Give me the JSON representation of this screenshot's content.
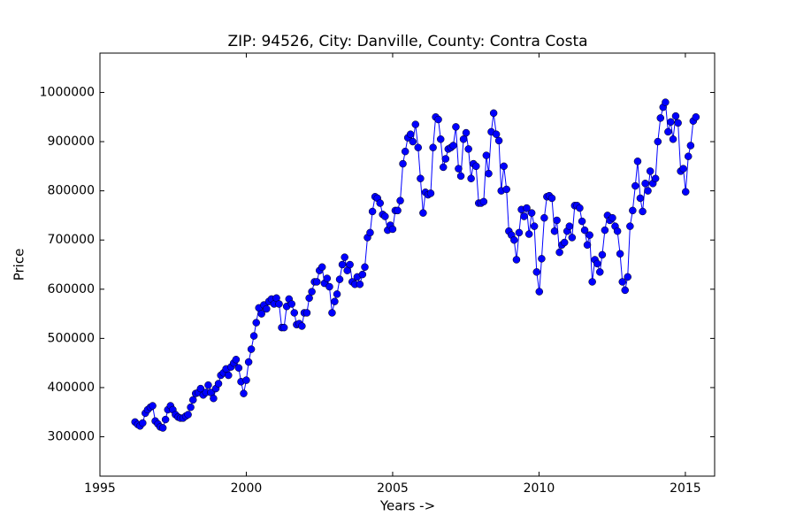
{
  "chart_data": {
    "type": "line",
    "title": "ZIP: 94526, City: Danville, County: Contra Costa",
    "x_label": "Years ->",
    "y_label": "Price",
    "xlim": [
      1995,
      2016
    ],
    "ylim": [
      220000,
      1080000
    ],
    "xticks": [
      1995,
      2000,
      2005,
      2010,
      2015
    ],
    "yticks": [
      300000,
      400000,
      500000,
      600000,
      700000,
      800000,
      900000,
      1000000
    ],
    "series": [
      {
        "color": "#0000ff",
        "x": [
          1996.2,
          1996.29,
          1996.37,
          1996.46,
          1996.55,
          1996.63,
          1996.72,
          1996.8,
          1996.89,
          1996.98,
          1997.06,
          1997.15,
          1997.24,
          1997.32,
          1997.41,
          1997.49,
          1997.58,
          1997.67,
          1997.75,
          1997.84,
          1997.93,
          1998.01,
          1998.1,
          1998.18,
          1998.27,
          1998.36,
          1998.44,
          1998.53,
          1998.62,
          1998.7,
          1998.79,
          1998.88,
          1998.96,
          1999.05,
          1999.13,
          1999.22,
          1999.31,
          1999.39,
          1999.48,
          1999.57,
          1999.65,
          1999.74,
          1999.82,
          1999.91,
          2000.0,
          2000.08,
          2000.17,
          2000.26,
          2000.34,
          2000.43,
          2000.52,
          2000.6,
          2000.69,
          2000.77,
          2000.86,
          2000.95,
          2001.03,
          2001.12,
          2001.21,
          2001.29,
          2001.38,
          2001.46,
          2001.55,
          2001.64,
          2001.72,
          2001.81,
          2001.9,
          2001.98,
          2002.07,
          2002.15,
          2002.24,
          2002.33,
          2002.41,
          2002.5,
          2002.59,
          2002.67,
          2002.76,
          2002.84,
          2002.93,
          2003.02,
          2003.1,
          2003.19,
          2003.28,
          2003.36,
          2003.45,
          2003.54,
          2003.62,
          2003.71,
          2003.79,
          2003.88,
          2003.97,
          2004.05,
          2004.14,
          2004.23,
          2004.31,
          2004.4,
          2004.48,
          2004.57,
          2004.66,
          2004.74,
          2004.83,
          2004.92,
          2005.0,
          2005.09,
          2005.17,
          2005.26,
          2005.35,
          2005.43,
          2005.52,
          2005.61,
          2005.69,
          2005.78,
          2005.87,
          2005.95,
          2006.04,
          2006.12,
          2006.21,
          2006.3,
          2006.38,
          2006.47,
          2006.56,
          2006.64,
          2006.73,
          2006.81,
          2006.9,
          2006.99,
          2007.07,
          2007.16,
          2007.25,
          2007.33,
          2007.42,
          2007.51,
          2007.59,
          2007.68,
          2007.76,
          2007.85,
          2007.94,
          2008.02,
          2008.11,
          2008.2,
          2008.28,
          2008.37,
          2008.45,
          2008.54,
          2008.63,
          2008.71,
          2008.8,
          2008.89,
          2008.97,
          2009.06,
          2009.15,
          2009.23,
          2009.32,
          2009.4,
          2009.49,
          2009.58,
          2009.66,
          2009.75,
          2009.84,
          2009.92,
          2010.01,
          2010.09,
          2010.18,
          2010.27,
          2010.35,
          2010.44,
          2010.53,
          2010.61,
          2010.7,
          2010.78,
          2010.87,
          2010.96,
          2011.04,
          2011.13,
          2011.22,
          2011.3,
          2011.39,
          2011.47,
          2011.56,
          2011.65,
          2011.73,
          2011.82,
          2011.91,
          2011.99,
          2012.08,
          2012.16,
          2012.25,
          2012.34,
          2012.42,
          2012.51,
          2012.6,
          2012.68,
          2012.77,
          2012.85,
          2012.94,
          2013.03,
          2013.11,
          2013.2,
          2013.29,
          2013.37,
          2013.46,
          2013.54,
          2013.63,
          2013.72,
          2013.8,
          2013.89,
          2013.98,
          2014.06,
          2014.15,
          2014.24,
          2014.32,
          2014.41,
          2014.5,
          2014.58,
          2014.67,
          2014.75,
          2014.84,
          2014.93,
          2015.01,
          2015.1,
          2015.18,
          2015.27,
          2015.36
        ],
        "values": [
          330000,
          325000,
          322000,
          328000,
          348000,
          355000,
          360000,
          363000,
          332000,
          326000,
          320000,
          318000,
          335000,
          355000,
          363000,
          355000,
          345000,
          340000,
          338000,
          338000,
          342000,
          345000,
          360000,
          375000,
          388000,
          390000,
          398000,
          385000,
          390000,
          405000,
          390000,
          378000,
          398000,
          408000,
          425000,
          430000,
          438000,
          425000,
          442000,
          450000,
          457000,
          440000,
          412000,
          388000,
          415000,
          452000,
          478000,
          505000,
          532000,
          562000,
          550000,
          568000,
          560000,
          575000,
          580000,
          570000,
          582000,
          570000,
          522000,
          522000,
          565000,
          580000,
          570000,
          552000,
          528000,
          530000,
          525000,
          552000,
          552000,
          582000,
          595000,
          615000,
          615000,
          638000,
          645000,
          612000,
          622000,
          605000,
          552000,
          575000,
          590000,
          620000,
          650000,
          665000,
          638000,
          650000,
          615000,
          610000,
          625000,
          610000,
          630000,
          645000,
          705000,
          715000,
          758000,
          788000,
          785000,
          775000,
          752000,
          748000,
          720000,
          730000,
          722000,
          760000,
          760000,
          780000,
          855000,
          880000,
          908000,
          915000,
          900000,
          935000,
          888000,
          825000,
          755000,
          797000,
          792000,
          795000,
          888000,
          950000,
          945000,
          905000,
          848000,
          865000,
          885000,
          888000,
          892000,
          930000,
          845000,
          830000,
          905000,
          918000,
          885000,
          825000,
          855000,
          850000,
          775000,
          775000,
          778000,
          872000,
          835000,
          920000,
          958000,
          915000,
          902000,
          800000,
          850000,
          803000,
          718000,
          710000,
          700000,
          660000,
          715000,
          762000,
          748000,
          765000,
          712000,
          755000,
          728000,
          635000,
          595000,
          662000,
          745000,
          788000,
          790000,
          785000,
          718000,
          740000,
          675000,
          690000,
          695000,
          718000,
          728000,
          705000,
          770000,
          770000,
          765000,
          738000,
          720000,
          690000,
          710000,
          615000,
          660000,
          652000,
          635000,
          670000,
          720000,
          750000,
          740000,
          745000,
          728000,
          718000,
          672000,
          615000,
          598000,
          625000,
          728000,
          760000,
          810000,
          860000,
          785000,
          758000,
          815000,
          800000,
          840000,
          815000,
          825000,
          900000,
          948000,
          970000,
          980000,
          920000,
          940000,
          905000,
          952000,
          938000,
          840000,
          845000,
          798000,
          870000,
          892000,
          942000,
          950000
        ]
      }
    ]
  }
}
